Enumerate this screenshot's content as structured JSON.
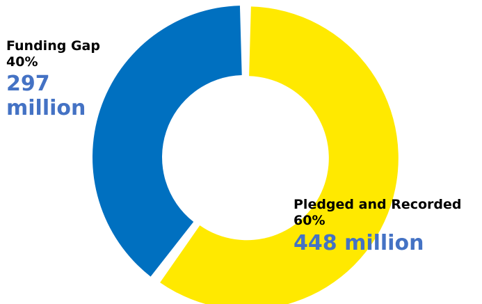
{
  "chart_data": {
    "type": "pie",
    "donut": true,
    "slices": [
      {
        "name": "Pledged and Recorded",
        "percent_label": "60%",
        "amount_label": "448 million",
        "value": 448,
        "color": "#FFE900"
      },
      {
        "name": "Funding Gap",
        "percent_label": "40%",
        "amount_label": "297 million",
        "value": 297,
        "color": "#0070C0"
      }
    ],
    "amount_color": "#4472C4"
  }
}
